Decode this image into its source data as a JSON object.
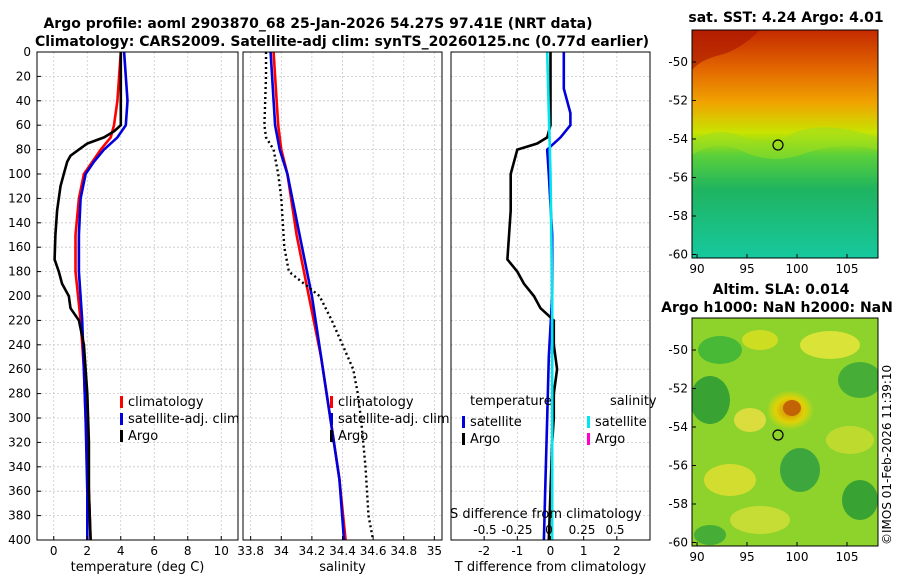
{
  "title_line1": "Argo profile: aoml 2903870_68 25-Jan-2026 54.27S 97.41E (NRT data)",
  "title_line2": "Climatology: CARS2009. Satellite-adj clim: synTS_20260125.nc (0.77d earlier)",
  "colors": {
    "clim": "#ff0000",
    "sat": "#0000dd",
    "argo": "#000000",
    "sal_sat": "#00e5ee",
    "sal_argo": "#ff00cc"
  },
  "chart_data": [
    {
      "type": "line",
      "id": "temperature",
      "xlabel": "temperature (deg C)",
      "xlim": [
        -1,
        11
      ],
      "ylim": [
        0,
        400
      ],
      "xticks": [
        0,
        2,
        4,
        6,
        8,
        10
      ],
      "yticks": [
        0,
        20,
        40,
        60,
        80,
        100,
        120,
        140,
        160,
        180,
        200,
        220,
        240,
        260,
        280,
        300,
        320,
        340,
        360,
        380,
        400
      ],
      "series": [
        {
          "name": "climatology",
          "color": "red",
          "depth": [
            0,
            40,
            60,
            70,
            80,
            90,
            100,
            120,
            150,
            180,
            220,
            260,
            300,
            360,
            400
          ],
          "values": [
            4.0,
            3.8,
            3.6,
            3.4,
            2.8,
            2.3,
            1.8,
            1.5,
            1.3,
            1.3,
            1.6,
            1.8,
            1.9,
            2.1,
            2.2
          ]
        },
        {
          "name": "satellite-adj. clim",
          "color": "blue",
          "depth": [
            0,
            40,
            60,
            70,
            80,
            90,
            100,
            120,
            150,
            180,
            220,
            260,
            300,
            360,
            400
          ],
          "values": [
            4.2,
            4.4,
            4.3,
            3.8,
            3.0,
            2.4,
            1.9,
            1.6,
            1.5,
            1.5,
            1.7,
            1.8,
            1.9,
            2.0,
            2.0
          ]
        },
        {
          "name": "Argo",
          "color": "black",
          "depth": [
            0,
            60,
            65,
            70,
            75,
            80,
            85,
            90,
            100,
            110,
            130,
            150,
            170,
            180,
            190,
            200,
            210,
            220,
            240,
            280,
            320,
            360,
            400
          ],
          "values": [
            4.0,
            4.0,
            3.6,
            3.0,
            2.0,
            1.5,
            1.0,
            0.8,
            0.6,
            0.4,
            0.2,
            0.1,
            0.05,
            0.3,
            0.5,
            0.9,
            1.0,
            1.5,
            1.8,
            2.0,
            2.1,
            2.1,
            2.2
          ]
        }
      ],
      "legend": [
        "climatology",
        "satellite-adj. clim",
        "Argo"
      ]
    },
    {
      "type": "line",
      "id": "salinity",
      "xlabel": "salinity",
      "xlim": [
        33.75,
        35.05
      ],
      "ylim": [
        0,
        400
      ],
      "xticks": [
        33.8,
        34,
        34.2,
        34.4,
        34.6,
        34.8,
        35
      ],
      "xticklabels": [
        "33.8",
        "34",
        "34.2",
        "34.4",
        "34.6",
        "34.8",
        "35"
      ],
      "series": [
        {
          "name": "climatology",
          "color": "red",
          "depth": [
            0,
            20,
            60,
            80,
            100,
            150,
            200,
            250,
            300,
            350,
            400
          ],
          "values": [
            33.95,
            33.96,
            33.98,
            34.0,
            34.04,
            34.1,
            34.18,
            34.26,
            34.32,
            34.38,
            34.42
          ]
        },
        {
          "name": "satellite-adj. clim",
          "color": "blue",
          "depth": [
            0,
            20,
            60,
            80,
            100,
            150,
            200,
            250,
            300,
            350,
            400
          ],
          "values": [
            33.93,
            33.94,
            33.96,
            33.99,
            34.04,
            34.12,
            34.2,
            34.26,
            34.32,
            34.38,
            34.41
          ]
        },
        {
          "name": "Argo",
          "color": "black",
          "style": "dotted",
          "depth": [
            0,
            20,
            60,
            70,
            80,
            100,
            120,
            160,
            180,
            190,
            200,
            220,
            240,
            260,
            280,
            300,
            340,
            380,
            400
          ],
          "values": [
            33.9,
            33.9,
            33.89,
            33.9,
            33.95,
            33.98,
            34.0,
            34.02,
            34.05,
            34.15,
            34.25,
            34.33,
            34.4,
            34.47,
            34.5,
            34.52,
            34.55,
            34.57,
            34.6
          ]
        }
      ],
      "legend": [
        "climatology",
        "satellite-adj. clim",
        "Argo"
      ]
    },
    {
      "type": "line",
      "id": "difference",
      "xlabel": "T difference from climatology",
      "xlim": [
        -3,
        3
      ],
      "ylim": [
        0,
        400
      ],
      "xticks": [
        -2,
        -1,
        0,
        1,
        2
      ],
      "xticklabels": [
        "-2",
        "-1",
        "0",
        "1",
        "2"
      ],
      "s_axis_label": "S difference from climatology",
      "s_xticklabels": [
        "-0.5",
        "-0.25",
        "0",
        "0.25",
        "0.5"
      ],
      "series": [
        {
          "name": "T satellite",
          "color": "blue",
          "depth": [
            0,
            30,
            40,
            50,
            60,
            70,
            80,
            100,
            150,
            200,
            250,
            300,
            350,
            400
          ],
          "values": [
            0.4,
            0.4,
            0.5,
            0.6,
            0.6,
            0.3,
            -0.1,
            -0.05,
            0.05,
            0.05,
            -0.05,
            -0.1,
            -0.15,
            -0.2
          ]
        },
        {
          "name": "T Argo",
          "color": "black",
          "depth": [
            0,
            60,
            70,
            75,
            80,
            90,
            100,
            130,
            170,
            180,
            190,
            200,
            210,
            215,
            220,
            240,
            260,
            280,
            300,
            320,
            360,
            400
          ],
          "values": [
            0,
            0,
            -0.1,
            -0.4,
            -1.0,
            -1.1,
            -1.2,
            -1.2,
            -1.3,
            -1.0,
            -0.8,
            -0.5,
            -0.3,
            -0.1,
            0.1,
            0.1,
            0.2,
            0.1,
            0.1,
            0.05,
            0.0,
            -0.05
          ]
        },
        {
          "name": "S satellite",
          "color": "cyan",
          "depth": [
            0,
            100,
            200,
            300,
            400
          ],
          "values": [
            -0.1,
            0.0,
            0.05,
            0.05,
            0.05
          ]
        }
      ],
      "legend_t_title": "temperature",
      "legend_s_title": "salinity",
      "legend": [
        "satellite",
        "Argo"
      ]
    }
  ],
  "maps": [
    {
      "title": "sat. SST: 4.24 Argo: 4.01",
      "xticks": [
        "90",
        "95",
        "100",
        "105"
      ],
      "yticks": [
        "-50",
        "-52",
        "-54",
        "-56",
        "-58",
        "-60"
      ]
    },
    {
      "title1": "Altim. SLA: 0.014",
      "title2": "Argo h1000: NaN h2000: NaN",
      "xticks": [
        "90",
        "95",
        "100",
        "105"
      ],
      "yticks": [
        "-50",
        "-52",
        "-54",
        "-56",
        "-58",
        "-60"
      ]
    }
  ],
  "watermark": "©IMOS 01-Feb-2026 11:39:10"
}
